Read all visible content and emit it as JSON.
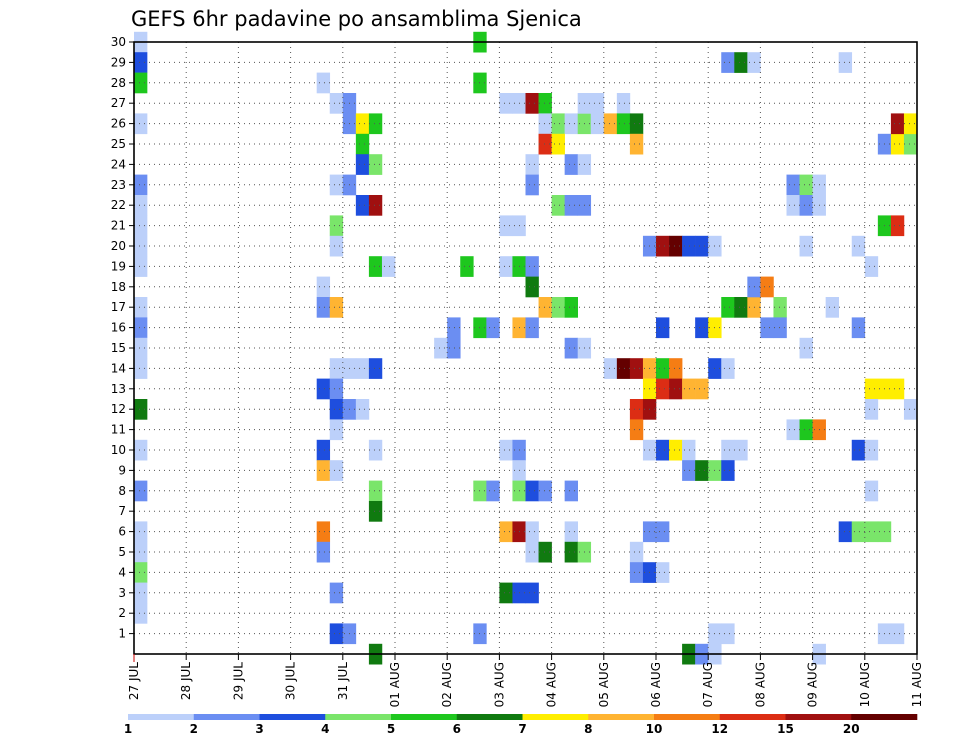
{
  "chart_data": {
    "type": "heatmap",
    "title": "GEFS 6hr padavine po ansamblima Sjenica",
    "x_tick_labels": [
      "27 JUL",
      "28 JUL",
      "29 JUL",
      "30 JUL",
      "31 JUL",
      "01 AUG",
      "02 AUG",
      "03 AUG",
      "04 AUG",
      "05 AUG",
      "06 AUG",
      "07 AUG",
      "08 AUG",
      "09 AUG",
      "10 AUG",
      "11 AUG"
    ],
    "y_tick_labels": [
      "1",
      "2",
      "3",
      "4",
      "5",
      "6",
      "7",
      "8",
      "9",
      "10",
      "11",
      "12",
      "13",
      "14",
      "15",
      "16",
      "17",
      "18",
      "19",
      "20",
      "21",
      "22",
      "23",
      "24",
      "25",
      "26",
      "27",
      "28",
      "29",
      "30"
    ],
    "ylim": [
      0,
      30
    ],
    "x_steps": 60,
    "grid": true,
    "colorbar": {
      "labels": [
        "1",
        "2",
        "3",
        "4",
        "5",
        "6",
        "7",
        "8",
        "10",
        "12",
        "15",
        "20"
      ],
      "colors": [
        "#bcd0fa",
        "#6b8ef2",
        "#1e4ede",
        "#7ae56a",
        "#1ec71e",
        "#107a10",
        "#ffee00",
        "#ffb432",
        "#f57d14",
        "#dc2d14",
        "#a01010",
        "#640000"
      ]
    },
    "cells": [
      [
        0,
        30,
        0
      ],
      [
        0,
        29,
        2
      ],
      [
        0,
        28,
        4
      ],
      [
        0,
        26,
        0
      ],
      [
        0,
        23,
        1
      ],
      [
        0,
        22,
        0
      ],
      [
        0,
        21,
        0
      ],
      [
        0,
        20,
        0
      ],
      [
        0,
        19,
        0
      ],
      [
        0,
        17,
        0
      ],
      [
        0,
        16,
        1
      ],
      [
        0,
        15,
        0
      ],
      [
        0,
        14,
        0
      ],
      [
        0,
        12,
        5
      ],
      [
        0,
        10,
        0
      ],
      [
        0,
        8,
        1
      ],
      [
        0,
        6,
        0
      ],
      [
        0,
        5,
        0
      ],
      [
        0,
        4,
        3
      ],
      [
        0,
        3,
        0
      ],
      [
        0,
        2,
        0
      ],
      [
        14,
        28,
        0
      ],
      [
        15,
        27,
        0
      ],
      [
        16,
        27,
        1
      ],
      [
        16,
        26,
        1
      ],
      [
        17,
        26,
        6
      ],
      [
        18,
        26,
        4
      ],
      [
        17,
        25,
        4
      ],
      [
        17,
        24,
        2
      ],
      [
        18,
        24,
        3
      ],
      [
        15,
        23,
        0
      ],
      [
        16,
        23,
        1
      ],
      [
        17,
        22,
        2
      ],
      [
        18,
        22,
        10
      ],
      [
        15,
        21,
        3
      ],
      [
        15,
        20,
        0
      ],
      [
        18,
        19,
        4
      ],
      [
        19,
        19,
        0
      ],
      [
        14,
        18,
        0
      ],
      [
        14,
        17,
        1
      ],
      [
        15,
        17,
        7
      ],
      [
        15,
        14,
        0
      ],
      [
        16,
        14,
        0
      ],
      [
        17,
        14,
        0
      ],
      [
        18,
        14,
        2
      ],
      [
        14,
        13,
        2
      ],
      [
        15,
        13,
        1
      ],
      [
        15,
        12,
        2
      ],
      [
        16,
        12,
        1
      ],
      [
        17,
        12,
        0
      ],
      [
        15,
        11,
        0
      ],
      [
        14,
        10,
        2
      ],
      [
        18,
        10,
        0
      ],
      [
        14,
        9,
        7
      ],
      [
        15,
        9,
        0
      ],
      [
        18,
        8,
        3
      ],
      [
        18,
        7,
        5
      ],
      [
        14,
        6,
        8
      ],
      [
        14,
        5,
        1
      ],
      [
        15,
        3,
        1
      ],
      [
        15,
        1,
        2
      ],
      [
        16,
        1,
        1
      ],
      [
        18,
        0,
        5
      ],
      [
        26,
        30,
        4
      ],
      [
        26,
        28,
        4
      ],
      [
        28,
        27,
        0
      ],
      [
        29,
        27,
        0
      ],
      [
        30,
        27,
        10
      ],
      [
        31,
        27,
        4
      ],
      [
        31,
        26,
        0
      ],
      [
        32,
        26,
        3
      ],
      [
        33,
        26,
        0
      ],
      [
        34,
        26,
        3
      ],
      [
        35,
        26,
        0
      ],
      [
        30,
        24,
        0
      ],
      [
        31,
        25,
        9
      ],
      [
        32,
        25,
        6
      ],
      [
        33,
        24,
        1
      ],
      [
        34,
        24,
        0
      ],
      [
        30,
        23,
        1
      ],
      [
        32,
        22,
        3
      ],
      [
        33,
        22,
        1
      ],
      [
        34,
        22,
        1
      ],
      [
        28,
        21,
        0
      ],
      [
        29,
        21,
        0
      ],
      [
        25,
        19,
        4
      ],
      [
        28,
        19,
        0
      ],
      [
        29,
        19,
        4
      ],
      [
        30,
        19,
        1
      ],
      [
        30,
        18,
        5
      ],
      [
        31,
        17,
        7
      ],
      [
        32,
        17,
        3
      ],
      [
        33,
        17,
        4
      ],
      [
        24,
        16,
        1
      ],
      [
        26,
        16,
        4
      ],
      [
        27,
        16,
        1
      ],
      [
        29,
        16,
        7
      ],
      [
        30,
        16,
        1
      ],
      [
        23,
        15,
        0
      ],
      [
        24,
        15,
        1
      ],
      [
        33,
        15,
        1
      ],
      [
        34,
        15,
        0
      ],
      [
        28,
        10,
        0
      ],
      [
        29,
        10,
        1
      ],
      [
        29,
        9,
        0
      ],
      [
        26,
        8,
        3
      ],
      [
        27,
        8,
        1
      ],
      [
        29,
        8,
        3
      ],
      [
        30,
        8,
        2
      ],
      [
        31,
        8,
        1
      ],
      [
        33,
        8,
        1
      ],
      [
        28,
        6,
        7
      ],
      [
        29,
        6,
        10
      ],
      [
        30,
        6,
        0
      ],
      [
        33,
        6,
        0
      ],
      [
        30,
        5,
        0
      ],
      [
        31,
        5,
        5
      ],
      [
        33,
        5,
        5
      ],
      [
        34,
        5,
        3
      ],
      [
        28,
        3,
        5
      ],
      [
        29,
        3,
        2
      ],
      [
        30,
        3,
        2
      ],
      [
        26,
        1,
        1
      ],
      [
        34,
        27,
        0
      ],
      [
        35,
        27,
        0
      ],
      [
        37,
        27,
        0
      ],
      [
        36,
        26,
        7
      ],
      [
        37,
        26,
        4
      ],
      [
        38,
        26,
        5
      ],
      [
        38,
        25,
        7
      ],
      [
        39,
        20,
        1
      ],
      [
        40,
        20,
        10
      ],
      [
        41,
        20,
        11
      ],
      [
        42,
        20,
        2
      ],
      [
        43,
        20,
        2
      ],
      [
        44,
        20,
        0
      ],
      [
        40,
        16,
        2
      ],
      [
        36,
        14,
        0
      ],
      [
        37,
        14,
        11
      ],
      [
        38,
        14,
        10
      ],
      [
        39,
        14,
        7
      ],
      [
        40,
        14,
        4
      ],
      [
        41,
        14,
        8
      ],
      [
        44,
        14,
        2
      ],
      [
        45,
        14,
        0
      ],
      [
        39,
        13,
        6
      ],
      [
        40,
        13,
        9
      ],
      [
        41,
        13,
        10
      ],
      [
        42,
        13,
        7
      ],
      [
        43,
        13,
        7
      ],
      [
        38,
        12,
        9
      ],
      [
        39,
        12,
        10
      ],
      [
        38,
        11,
        8
      ],
      [
        39,
        10,
        0
      ],
      [
        40,
        10,
        2
      ],
      [
        41,
        10,
        6
      ],
      [
        42,
        10,
        0
      ],
      [
        45,
        10,
        0
      ],
      [
        46,
        10,
        0
      ],
      [
        42,
        9,
        1
      ],
      [
        43,
        9,
        5
      ],
      [
        44,
        9,
        3
      ],
      [
        45,
        9,
        2
      ],
      [
        39,
        6,
        1
      ],
      [
        40,
        6,
        1
      ],
      [
        38,
        5,
        0
      ],
      [
        38,
        4,
        1
      ],
      [
        39,
        4,
        2
      ],
      [
        40,
        4,
        0
      ],
      [
        42,
        0,
        5
      ],
      [
        43,
        0,
        1
      ],
      [
        44,
        0,
        0
      ],
      [
        45,
        29,
        1
      ],
      [
        46,
        29,
        5
      ],
      [
        47,
        29,
        0
      ],
      [
        45,
        17,
        4
      ],
      [
        46,
        17,
        5
      ],
      [
        47,
        17,
        7
      ],
      [
        49,
        17,
        3
      ],
      [
        47,
        18,
        1
      ],
      [
        48,
        18,
        8
      ],
      [
        48,
        16,
        1
      ],
      [
        49,
        16,
        1
      ],
      [
        43,
        16,
        2
      ],
      [
        44,
        16,
        6
      ],
      [
        44,
        1,
        0
      ],
      [
        45,
        1,
        0
      ],
      [
        54,
        29,
        0
      ],
      [
        50,
        23,
        1
      ],
      [
        51,
        23,
        3
      ],
      [
        52,
        23,
        0
      ],
      [
        50,
        22,
        0
      ],
      [
        51,
        22,
        1
      ],
      [
        52,
        22,
        0
      ],
      [
        50,
        11,
        0
      ],
      [
        51,
        11,
        4
      ],
      [
        52,
        11,
        8
      ],
      [
        53,
        17,
        0
      ],
      [
        51,
        20,
        0
      ],
      [
        55,
        20,
        0
      ],
      [
        55,
        16,
        1
      ],
      [
        51,
        15,
        0
      ],
      [
        56,
        19,
        0
      ],
      [
        56,
        13,
        6
      ],
      [
        57,
        13,
        6
      ],
      [
        58,
        13,
        6
      ],
      [
        56,
        12,
        0
      ],
      [
        59,
        12,
        0
      ],
      [
        55,
        10,
        2
      ],
      [
        56,
        10,
        0
      ],
      [
        56,
        8,
        0
      ],
      [
        54,
        6,
        2
      ],
      [
        55,
        6,
        3
      ],
      [
        56,
        6,
        3
      ],
      [
        57,
        6,
        3
      ],
      [
        57,
        25,
        1
      ],
      [
        58,
        25,
        6
      ],
      [
        59,
        25,
        3
      ],
      [
        58,
        26,
        10
      ],
      [
        59,
        26,
        6
      ],
      [
        57,
        21,
        4
      ],
      [
        58,
        21,
        9
      ],
      [
        57,
        1,
        0
      ],
      [
        58,
        1,
        0
      ],
      [
        52,
        0,
        0
      ]
    ]
  }
}
